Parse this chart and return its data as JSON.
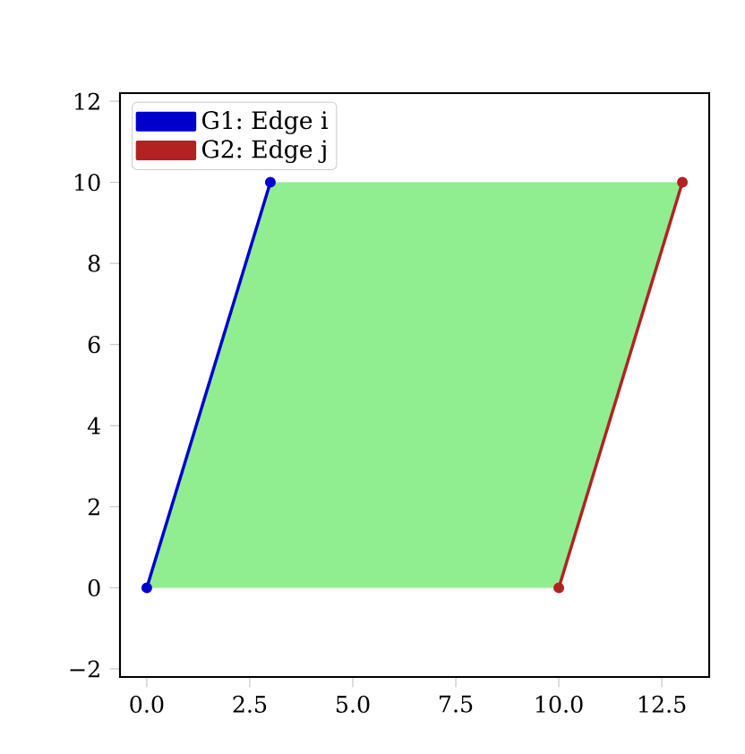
{
  "chart_data": {
    "type": "line",
    "series": [
      {
        "type": "area",
        "marker": "none",
        "color": "#90ee90",
        "x": [
          0,
          3,
          13,
          10
        ],
        "values": [
          0,
          10,
          10,
          0
        ]
      },
      {
        "name": "G1: Edge i",
        "marker": "circle",
        "color": "#0000cd",
        "x": [
          0,
          3
        ],
        "values": [
          0,
          10
        ]
      },
      {
        "name": "G2: Edge j",
        "marker": "circle",
        "color": "#b22222",
        "x": [
          10,
          13
        ],
        "values": [
          0,
          10
        ]
      }
    ],
    "xlim": [
      -0.65,
      13.65
    ],
    "ylim": [
      -2.2,
      12.2
    ],
    "xticks": [
      {
        "value": 0,
        "label": "0.0"
      },
      {
        "value": 2.5,
        "label": "2.5"
      },
      {
        "value": 5,
        "label": "5.0"
      },
      {
        "value": 7.5,
        "label": "7.5"
      },
      {
        "value": 10,
        "label": "10.0"
      },
      {
        "value": 12.5,
        "label": "12.5"
      }
    ],
    "yticks": [
      {
        "value": -2,
        "label": "−2"
      },
      0,
      2,
      4,
      6,
      8,
      10,
      12
    ],
    "legend": "top left"
  }
}
